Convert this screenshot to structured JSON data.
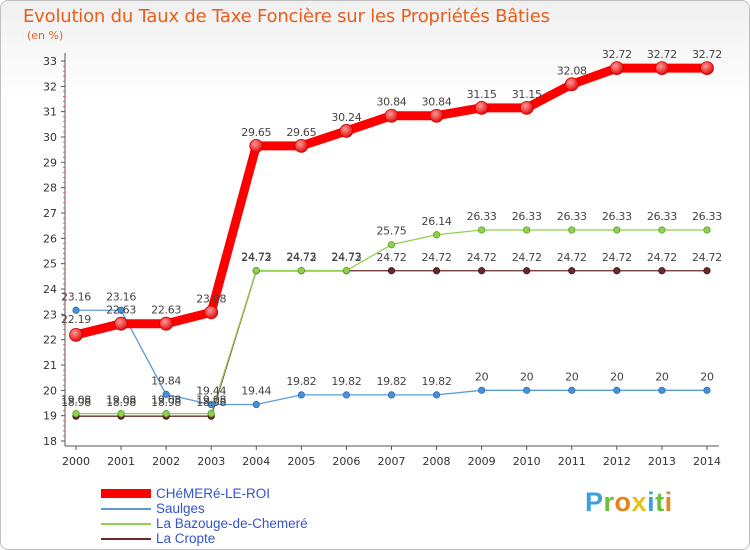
{
  "header": {
    "title": "Evolution du Taux de Taxe Foncière sur les Propriétés Bâties",
    "subtitle": "(en %)"
  },
  "brand": {
    "logo_text": "Proxiti"
  },
  "chart_data": {
    "type": "line",
    "title": "Evolution du Taux de Taxe Foncière sur les Propriétés Bâties",
    "ylabel": "(en %)",
    "xlabel": "",
    "x": [
      "2000",
      "2001",
      "2002",
      "2003",
      "2004",
      "2005",
      "2006",
      "2007",
      "2008",
      "2009",
      "2010",
      "2011",
      "2012",
      "2013",
      "2014"
    ],
    "ylim": [
      18,
      33
    ],
    "yticks": [
      18,
      19,
      20,
      21,
      22,
      23,
      24,
      25,
      26,
      27,
      28,
      29,
      30,
      31,
      32,
      33
    ],
    "grid": false,
    "legend_position": "bottom-left",
    "series": [
      {
        "name": "CHéMERé-LE-ROI",
        "color": "#ff0000",
        "values": [
          22.19,
          22.63,
          22.63,
          23.08,
          29.65,
          29.65,
          30.24,
          30.84,
          30.84,
          31.15,
          31.15,
          32.08,
          32.72,
          32.72,
          32.72
        ],
        "labels": [
          "22.19",
          "22.63",
          "22.63",
          "23.08",
          "29.65",
          "29.65",
          "30.24",
          "30.84",
          "30.84",
          "31.15",
          "31.15",
          "32.08",
          "32.72",
          "32.72",
          "32.72"
        ]
      },
      {
        "name": "Saulges",
        "color": "#5b9bd5",
        "values": [
          23.16,
          23.16,
          19.84,
          19.44,
          19.44,
          19.82,
          19.82,
          19.82,
          19.82,
          20,
          20,
          20,
          20,
          20,
          20
        ],
        "labels": [
          "23.16",
          "23.16",
          "19.84",
          "19.44",
          "19.44",
          "19.82",
          "19.82",
          "19.82",
          "19.82",
          "20",
          "20",
          "20",
          "20",
          "20",
          "20"
        ]
      },
      {
        "name": "La Bazouge-de-Chemeré",
        "color": "#8fd14f",
        "values": [
          19.08,
          19.08,
          19.08,
          19.08,
          24.73,
          24.73,
          24.73,
          25.75,
          26.14,
          26.33,
          26.33,
          26.33,
          26.33,
          26.33,
          26.33
        ],
        "labels": [
          "19.08",
          "19.08",
          "19.08",
          "19.08",
          "24.73",
          "24.73",
          "24.73",
          "25.75",
          "26.14",
          "26.33",
          "26.33",
          "26.33",
          "26.33",
          "26.33",
          "26.33"
        ]
      },
      {
        "name": "La Cropte",
        "color": "#6b2a2a",
        "values": [
          18.98,
          18.98,
          18.98,
          18.98,
          24.72,
          24.72,
          24.72,
          24.72,
          24.72,
          24.72,
          24.72,
          24.72,
          24.72,
          24.72,
          24.72
        ],
        "labels": [
          "18.98",
          "18.98",
          "18.98",
          "18.98",
          "24.72",
          "24.72",
          "24.72",
          "24.72",
          "24.72",
          "24.72",
          "24.72",
          "24.72",
          "24.72",
          "24.72",
          "24.72"
        ]
      }
    ]
  }
}
